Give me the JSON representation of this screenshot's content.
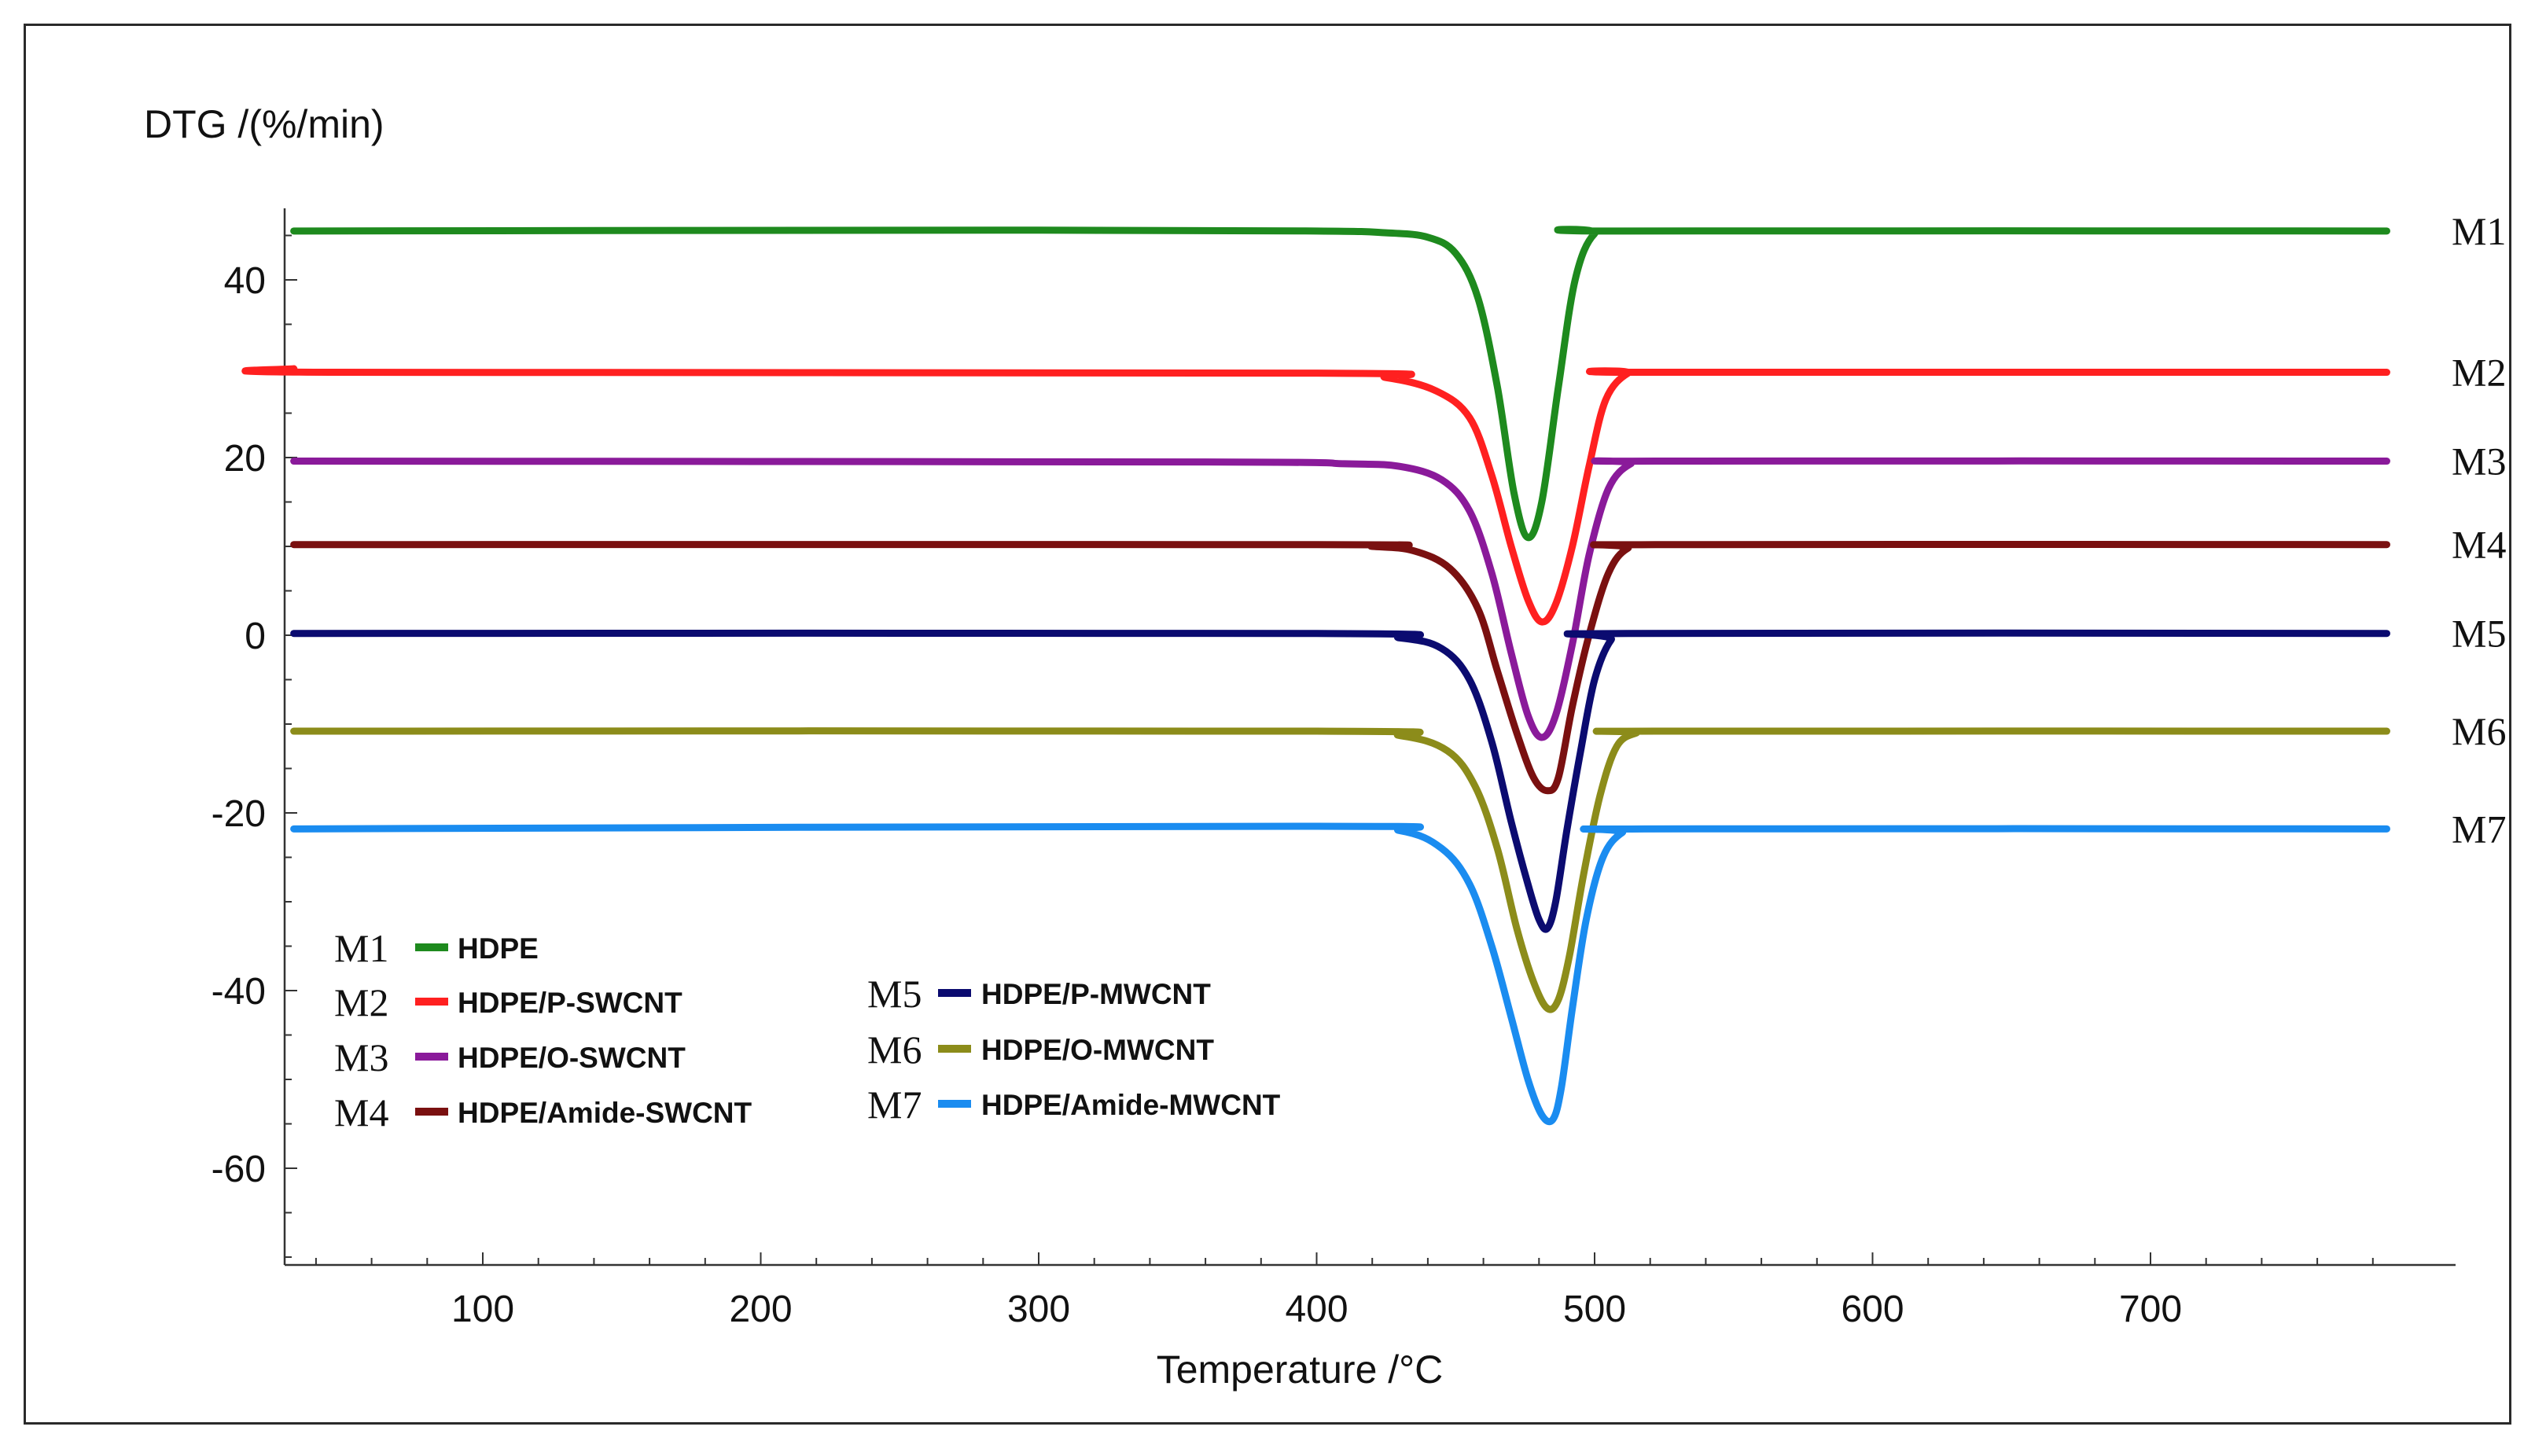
{
  "chart_data": {
    "type": "line",
    "title": "",
    "ylabel": "DTG /(%/min)",
    "xlabel": "Temperature /°C",
    "xlim": [
      28,
      785
    ],
    "ylim": [
      -71,
      46
    ],
    "x_ticks": [
      100,
      200,
      300,
      400,
      500,
      600,
      700
    ],
    "x_tick_labels": [
      "100",
      "200",
      "300",
      "400",
      "500",
      "600",
      "700"
    ],
    "y_ticks": [
      -60,
      -40,
      -20,
      0,
      20,
      40
    ],
    "y_tick_labels": [
      "-60",
      "-40",
      "-20",
      "0",
      "20",
      "40"
    ],
    "x_minor_step": 20,
    "y_minor_step": 5,
    "grid": false,
    "legend_position": "bottom-left",
    "series": [
      {
        "id": "M1",
        "name": "HDPE",
        "color": "#1e8a1e",
        "legend_column": 0,
        "x": [
          32,
          300,
          400,
          425,
          440,
          450,
          458,
          465,
          471,
          476,
          481,
          487,
          493,
          500,
          510,
          785
        ],
        "y": [
          45.5,
          45.6,
          45.5,
          45.3,
          44.8,
          43.0,
          38.0,
          28.0,
          16.0,
          11.0,
          15.0,
          28.0,
          40.0,
          45.2,
          45.5,
          45.5
        ]
      },
      {
        "id": "M2",
        "name": "HDPE/P-SWCNT",
        "color": "#ff2020",
        "legend_column": 0,
        "x": [
          32,
          45,
          400,
          425,
          443,
          455,
          463,
          470,
          476,
          481,
          486,
          492,
          498,
          504,
          512,
          520,
          785
        ],
        "y": [
          30.0,
          29.6,
          29.5,
          29.0,
          27.5,
          24.5,
          18.0,
          10.0,
          4.0,
          1.5,
          3.5,
          10.0,
          19.0,
          26.5,
          29.5,
          29.6,
          29.6
        ]
      },
      {
        "id": "M3",
        "name": "HDPE/O-SWCNT",
        "color": "#8a1a9a",
        "legend_column": 0,
        "x": [
          32,
          360,
          410,
          430,
          445,
          455,
          463,
          470,
          476,
          481,
          486,
          492,
          498,
          505,
          513,
          522,
          785
        ],
        "y": [
          19.6,
          19.5,
          19.3,
          19.0,
          17.5,
          14.0,
          7.0,
          -2.0,
          -9.0,
          -11.5,
          -9.0,
          -1.0,
          9.0,
          16.5,
          19.3,
          19.6,
          19.6
        ]
      },
      {
        "id": "M4",
        "name": "HDPE/Amide-SWCNT",
        "color": "#7a1010",
        "legend_column": 0,
        "x": [
          32,
          400,
          420,
          435,
          448,
          458,
          465,
          472,
          478,
          483,
          487,
          492,
          498,
          505,
          512,
          522,
          785
        ],
        "y": [
          10.2,
          10.2,
          10.0,
          9.5,
          7.5,
          3.0,
          -4.0,
          -11.0,
          -16.0,
          -17.5,
          -16.0,
          -8.0,
          0.0,
          7.0,
          9.8,
          10.2,
          10.2
        ]
      },
      {
        "id": "M5",
        "name": "HDPE/P-MWCNT",
        "color": "#0b0b70",
        "legend_column": 1,
        "x": [
          32,
          400,
          430,
          445,
          455,
          463,
          470,
          476,
          480,
          483,
          486,
          490,
          495,
          500,
          506,
          512,
          785
        ],
        "y": [
          0.2,
          0.2,
          -0.3,
          -1.5,
          -5.0,
          -12.0,
          -21.0,
          -28.0,
          -32.0,
          -33.0,
          -30.0,
          -22.0,
          -13.0,
          -5.0,
          -0.5,
          0.2,
          0.2
        ]
      },
      {
        "id": "M6",
        "name": "HDPE/O-MWCNT",
        "color": "#8c8c1a",
        "legend_column": 1,
        "x": [
          32,
          400,
          430,
          447,
          457,
          465,
          472,
          478,
          483,
          487,
          491,
          496,
          502,
          508,
          515,
          522,
          785
        ],
        "y": [
          -10.8,
          -10.8,
          -11.3,
          -13.0,
          -17.0,
          -24.0,
          -33.0,
          -39.0,
          -42.0,
          -41.0,
          -36.0,
          -27.0,
          -18.0,
          -12.5,
          -11.0,
          -10.8,
          -10.8
        ]
      },
      {
        "id": "M7",
        "name": "HDPE/Amide-MWCNT",
        "color": "#1a8cf0",
        "legend_column": 1,
        "x": [
          32,
          400,
          430,
          445,
          455,
          463,
          470,
          476,
          481,
          485,
          488,
          492,
          497,
          503,
          510,
          518,
          785
        ],
        "y": [
          -21.8,
          -21.5,
          -22.0,
          -24.0,
          -28.0,
          -35.0,
          -43.0,
          -50.0,
          -54.0,
          -54.5,
          -51.0,
          -42.0,
          -32.0,
          -25.0,
          -22.2,
          -21.8,
          -21.8
        ]
      }
    ]
  }
}
